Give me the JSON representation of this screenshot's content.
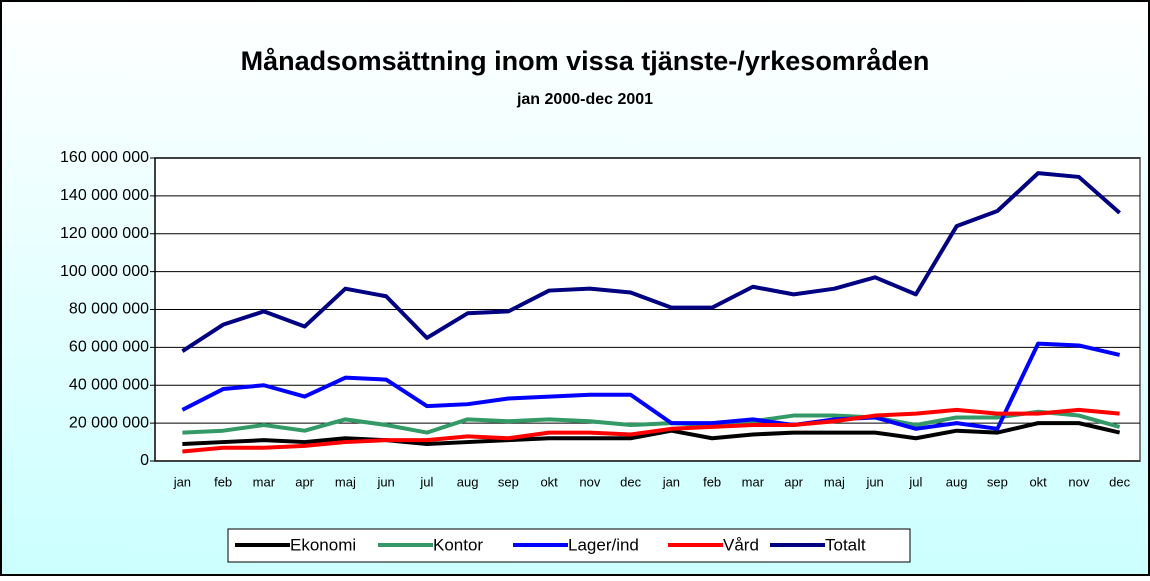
{
  "chart_data": {
    "type": "line",
    "title": "Månadsomsättning inom vissa tjänste-/yrkesområden",
    "subtitle": "jan 2000-dec 2001",
    "categories": [
      "jan",
      "feb",
      "mar",
      "apr",
      "maj",
      "jun",
      "jul",
      "aug",
      "sep",
      "okt",
      "nov",
      "dec",
      "jan",
      "feb",
      "mar",
      "apr",
      "maj",
      "jun",
      "jul",
      "aug",
      "sep",
      "okt",
      "nov",
      "dec"
    ],
    "series": [
      {
        "name": "Ekonomi",
        "color": "#000000",
        "values": [
          9000000,
          10000000,
          11000000,
          10000000,
          12000000,
          11000000,
          9000000,
          10000000,
          11000000,
          12000000,
          12000000,
          12000000,
          16000000,
          12000000,
          14000000,
          15000000,
          15000000,
          15000000,
          12000000,
          16000000,
          15000000,
          20000000,
          20000000,
          15000000
        ]
      },
      {
        "name": "Kontor",
        "color": "#339966",
        "values": [
          15000000,
          16000000,
          19000000,
          16000000,
          22000000,
          19000000,
          15000000,
          22000000,
          21000000,
          22000000,
          21000000,
          19000000,
          20000000,
          19000000,
          21000000,
          24000000,
          24000000,
          23000000,
          19000000,
          23000000,
          23000000,
          26000000,
          24000000,
          18000000
        ]
      },
      {
        "name": "Lager/ind",
        "color": "#0000ff",
        "values": [
          27000000,
          38000000,
          40000000,
          34000000,
          44000000,
          43000000,
          29000000,
          30000000,
          33000000,
          34000000,
          35000000,
          35000000,
          20000000,
          20000000,
          22000000,
          19000000,
          22000000,
          23000000,
          17000000,
          20000000,
          17000000,
          62000000,
          61000000,
          56000000
        ]
      },
      {
        "name": "Vård",
        "color": "#ff0000",
        "values": [
          5000000,
          7000000,
          7000000,
          8000000,
          10000000,
          11000000,
          11000000,
          13000000,
          12000000,
          15000000,
          15000000,
          14000000,
          17000000,
          18000000,
          19000000,
          19000000,
          21000000,
          24000000,
          25000000,
          27000000,
          25000000,
          25000000,
          27000000,
          25000000
        ]
      },
      {
        "name": "Totalt",
        "color": "#000080",
        "values": [
          58000000,
          72000000,
          79000000,
          71000000,
          91000000,
          87000000,
          65000000,
          78000000,
          79000000,
          90000000,
          91000000,
          89000000,
          81000000,
          81000000,
          92000000,
          88000000,
          91000000,
          97000000,
          88000000,
          124000000,
          132000000,
          152000000,
          150000000,
          131000000
        ]
      }
    ],
    "ylim": [
      0,
      160000000
    ],
    "yticks": [
      0,
      {
        "value": 20000000,
        "label": "20 000 000"
      },
      {
        "value": 40000000,
        "label": "40 000 000"
      },
      {
        "value": 60000000,
        "label": "60 000 000"
      },
      {
        "value": 80000000,
        "label": "80 000 000"
      },
      {
        "value": 100000000,
        "label": "100 000 000"
      },
      {
        "value": 120000000,
        "label": "120 000 000"
      },
      {
        "value": 140000000,
        "label": "140 000 000"
      },
      {
        "value": 160000000,
        "label": "160 000 000"
      }
    ],
    "grid": true,
    "legend": "bottom"
  }
}
